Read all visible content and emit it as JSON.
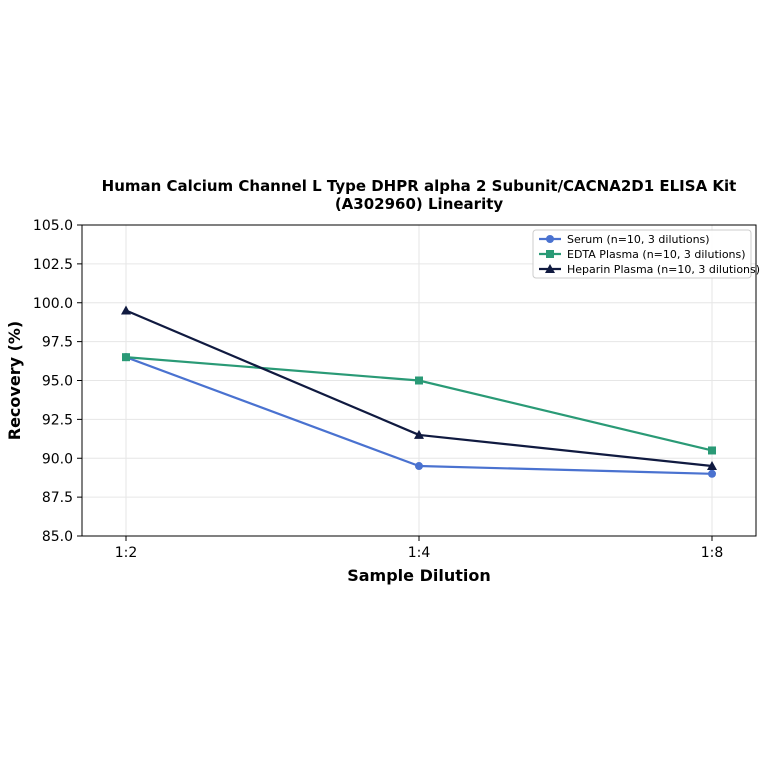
{
  "chart_data": {
    "type": "line",
    "title_lines": [
      "Human Calcium Channel L Type DHPR alpha 2 Subunit/CACNA2D1 ELISA Kit",
      "(A302960) Linearity"
    ],
    "xlabel": "Sample Dilution",
    "ylabel": "Recovery (%)",
    "categories": [
      "1:2",
      "1:4",
      "1:8"
    ],
    "ylim": [
      85.0,
      105.0
    ],
    "yticks": [
      "85.0",
      "87.5",
      "90.0",
      "92.5",
      "95.0",
      "97.5",
      "100.0",
      "102.5",
      "105.0"
    ],
    "grid": true,
    "legend_position": "top-right",
    "series": [
      {
        "name": "Serum (n=10, 3 dilutions)",
        "values": [
          96.5,
          89.5,
          89.0
        ],
        "color": "#4a72d0",
        "marker": "circle"
      },
      {
        "name": "EDTA Plasma (n=10, 3 dilutions)",
        "values": [
          96.5,
          95.0,
          90.5
        ],
        "color": "#2a9a76",
        "marker": "square"
      },
      {
        "name": "Heparin Plasma (n=10, 3 dilutions)",
        "values": [
          99.5,
          91.5,
          89.5
        ],
        "color": "#101a40",
        "marker": "triangle"
      }
    ]
  }
}
